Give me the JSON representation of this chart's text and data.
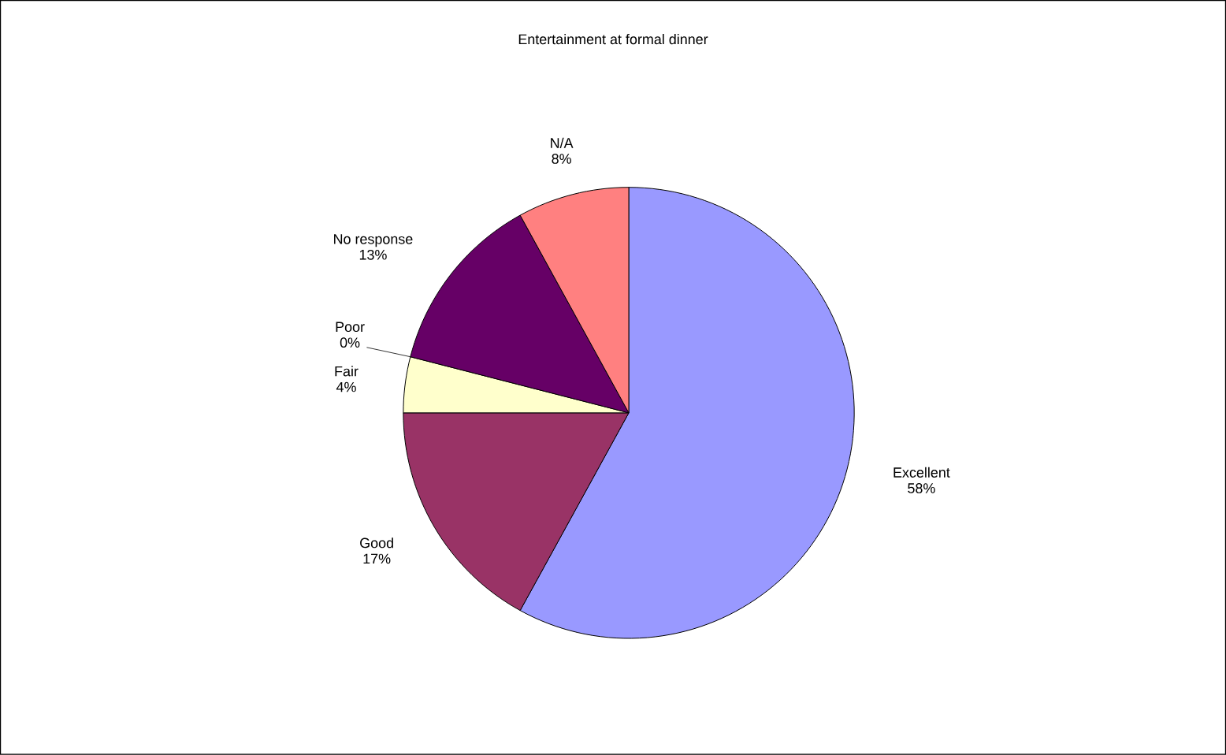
{
  "chart_data": {
    "type": "pie",
    "title": "Entertainment at formal dinner",
    "categories": [
      "Excellent",
      "Good",
      "Fair",
      "Poor",
      "No response",
      "N/A"
    ],
    "values": [
      58,
      17,
      4,
      0,
      13,
      8
    ],
    "value_labels": [
      "58%",
      "17%",
      "4%",
      "0%",
      "13%",
      "8%"
    ],
    "colors": [
      "#9999ff",
      "#993366",
      "#ffffcc",
      "#ccffff",
      "#660066",
      "#ff8080"
    ]
  }
}
